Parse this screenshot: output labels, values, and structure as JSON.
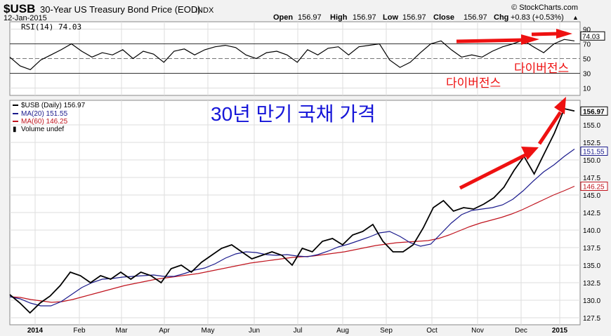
{
  "header": {
    "symbol": "$USB",
    "name": "30-Year US Treasury Bond Price (EOD)",
    "exchange": "INDX",
    "date": "12-Jan-2015",
    "brand": "© StockCharts.com",
    "open_label": "Open",
    "open": "156.97",
    "high_label": "High",
    "high": "156.97",
    "low_label": "Low",
    "low": "156.97",
    "close_label": "Close",
    "close": "156.97",
    "chg_label": "Chg",
    "chg": "+0.83 (+0.53%)"
  },
  "annotations": {
    "title_ko": "30년 만기 국채 가격",
    "divergence_1": "다이버전스",
    "divergence_2": "다이버전스",
    "arrow_color": "#ee1111"
  },
  "chart_data": [
    {
      "type": "line",
      "title": "RSI(14) 74.03",
      "legend": "RSI(14) 74.03",
      "ylim": [
        0,
        100
      ],
      "yticks": [
        "90",
        "70",
        "50",
        "30",
        "10"
      ],
      "ytick_values": [
        90,
        70,
        50,
        30,
        10
      ],
      "last_value": "74.03",
      "values": [
        52,
        40,
        35,
        48,
        55,
        62,
        70,
        60,
        52,
        58,
        55,
        62,
        50,
        60,
        56,
        45,
        60,
        63,
        55,
        62,
        66,
        68,
        65,
        55,
        50,
        58,
        60,
        55,
        45,
        62,
        55,
        64,
        66,
        55,
        66,
        68,
        70,
        48,
        38,
        45,
        58,
        70,
        74,
        62,
        52,
        55,
        52,
        60,
        66,
        70,
        75,
        66,
        58,
        70,
        76,
        74.03
      ]
    },
    {
      "type": "line",
      "title": "$USB (Daily) 156.97",
      "xlabels": [
        "2014",
        "Feb",
        "Mar",
        "Apr",
        "May",
        "Jun",
        "Jul",
        "Aug",
        "Sep",
        "Oct",
        "Nov",
        "Dec",
        "2015"
      ],
      "ylim": [
        126.5,
        158.5
      ],
      "yticks": [
        "155.0",
        "152.5",
        "150.0",
        "147.5",
        "145.0",
        "142.5",
        "140.0",
        "137.5",
        "135.0",
        "132.5",
        "130.0",
        "127.5"
      ],
      "ytick_values": [
        155,
        152.5,
        150,
        147.5,
        145,
        142.5,
        140,
        137.5,
        135,
        132.5,
        130,
        127.5
      ],
      "series": [
        {
          "name": "$USB (Daily)",
          "legend": "$USB (Daily) 156.97",
          "last": "156.97",
          "color": "#000000",
          "values": [
            130.8,
            129.6,
            128.2,
            129.6,
            130.6,
            132.1,
            134.0,
            133.5,
            132.5,
            133.5,
            133.0,
            134.0,
            133.0,
            134.0,
            133.5,
            132.5,
            134.5,
            135.0,
            134.0,
            135.4,
            136.4,
            137.4,
            137.9,
            136.9,
            135.9,
            136.4,
            136.9,
            136.4,
            135.0,
            137.4,
            136.9,
            138.4,
            138.8,
            137.9,
            139.3,
            139.8,
            140.8,
            138.4,
            136.9,
            136.9,
            137.9,
            140.3,
            143.2,
            144.2,
            142.7,
            143.2,
            143.0,
            143.7,
            144.6,
            146.1,
            148.5,
            150.5,
            148.0,
            150.9,
            153.8,
            157.3,
            156.97
          ]
        },
        {
          "name": "MA(20)",
          "legend": "MA(20) 151.55",
          "last": "151.55",
          "color": "#1a1a8c",
          "values": [
            130.5,
            130.2,
            129.6,
            129.2,
            129.2,
            129.8,
            130.8,
            131.8,
            132.5,
            133.0,
            133.1,
            133.3,
            133.4,
            133.5,
            133.6,
            133.4,
            133.4,
            133.8,
            134.3,
            134.6,
            135.2,
            136.0,
            136.6,
            136.9,
            136.8,
            136.5,
            136.4,
            136.5,
            136.3,
            136.2,
            136.5,
            137.0,
            137.6,
            138.0,
            138.5,
            139.0,
            139.6,
            139.8,
            139.1,
            138.2,
            137.7,
            138.0,
            139.5,
            141.0,
            142.2,
            142.8,
            143.0,
            143.2,
            143.6,
            144.4,
            145.6,
            147.0,
            148.3,
            149.3,
            150.5,
            151.55
          ]
        },
        {
          "name": "MA(60)",
          "legend": "MA(60) 146.25",
          "last": "146.25",
          "color": "#c0141e",
          "values": [
            130.5,
            130.4,
            130.1,
            129.9,
            129.7,
            129.8,
            130.1,
            130.5,
            130.9,
            131.3,
            131.7,
            132.1,
            132.4,
            132.7,
            133.0,
            133.2,
            133.4,
            133.6,
            133.8,
            134.1,
            134.4,
            134.7,
            135.0,
            135.3,
            135.5,
            135.7,
            135.9,
            136.1,
            136.2,
            136.3,
            136.5,
            136.7,
            136.9,
            137.2,
            137.5,
            137.8,
            138.0,
            138.2,
            138.3,
            138.4,
            138.5,
            138.8,
            139.3,
            139.9,
            140.5,
            141.0,
            141.4,
            141.8,
            142.3,
            142.9,
            143.6,
            144.3,
            145.0,
            145.6,
            146.25
          ]
        }
      ],
      "volume_legend": "Volume undef"
    }
  ]
}
